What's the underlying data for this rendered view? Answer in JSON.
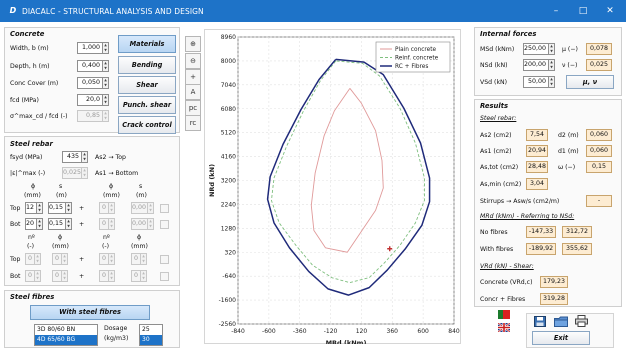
{
  "window": {
    "title": "DIACALC - STRUCTURAL ANALYSIS AND DESIGN",
    "logo": "D",
    "minimize": "–",
    "maximize": "□",
    "close": "✕"
  },
  "concrete": {
    "title": "Concrete",
    "width_label": "Width, b (m)",
    "width": "1,000",
    "depth_label": "Depth, h (m)",
    "depth": "0,400",
    "cover_label": "Conc Cover (m)",
    "cover": "0,050",
    "fcd_label": "fcd (MPa)",
    "fcd": "20,0",
    "sigma_label": "σ^max_cd / fcd (-)",
    "sigma": "0,85",
    "buttons": {
      "materials": "Materials",
      "bending": "Bending",
      "shear": "Shear",
      "punch": "Punch. shear",
      "crack": "Crack control"
    }
  },
  "tools": [
    "⊕",
    "⊖",
    "+",
    "A",
    "pc",
    "rc"
  ],
  "steel_rebar": {
    "title": "Steel rebar",
    "fsyd_label": "fsyd (MPa)",
    "fsyd": "435",
    "top_arrow": "As2 → Top",
    "eps_label": "|ε|^max (-)",
    "eps": "0,025",
    "bottom_arrow": "As1 → Bottom",
    "headers": {
      "phi": "ϕ",
      "s": "s",
      "mm": "(mm)",
      "m": "(m)",
      "n": "nº",
      "dash": "(-)"
    },
    "top_label": "Top",
    "bot_label": "Bot",
    "top_phi": "12",
    "top_s": "0,15",
    "top_phi2": "0",
    "top_s2": "0,00",
    "bot_phi": "20",
    "bot_s": "0,15",
    "bot_phi2": "0",
    "bot_s2": "0,00",
    "top2_n": "0",
    "top2_phi": "0",
    "top2_n2": "0",
    "top2_phi2": "0",
    "bot2_n": "0",
    "bot2_phi": "0",
    "bot2_n2": "0",
    "bot2_phi2": "0",
    "plus": "+"
  },
  "steel_fibres": {
    "title": "Steel fibres",
    "button": "With steel fibres",
    "options": [
      "3D 80/60 BN",
      "4D 65/60 BG"
    ],
    "dosage_label": "Dosage",
    "dosage_unit": "(kg/m3)",
    "dosage_values": [
      "25",
      "30"
    ]
  },
  "internal_forces": {
    "title": "Internal forces",
    "msd_label": "MSd (kNm)",
    "msd": "250,00",
    "mu_label": "μ (−)",
    "mu": "0,078",
    "nsd_label": "NSd (kN)",
    "nsd": "200,00",
    "nu_label": "ν (−)",
    "nu": "0,025",
    "vsd_label": "VSd (kN)",
    "vsd": "50,00",
    "munu_button": "μ, ν"
  },
  "results": {
    "title": "Results",
    "rebar_title": "Steel rebar:",
    "as2_label": "As2 (cm2)",
    "as2": "7,54",
    "d2_label": "d2 (m)",
    "d2": "0,060",
    "as1_label": "As1 (cm2)",
    "as1": "20,94",
    "d1_label": "d1 (m)",
    "d1": "0,060",
    "astot_label": "As,tot (cm2)",
    "astot": "28,48",
    "omega_label": "ω (−)",
    "omega": "0,15",
    "asmin_label": "As,min (cm2)",
    "asmin": "3,04",
    "stirrups_label": "Stirrups  →  Asw/s (cm2/m)",
    "stirrups": "-",
    "mrd_title": "MRd (kNm) - Referring to NSd:",
    "nofibres_label": "No fibres",
    "nofibres_a": "-147,33",
    "nofibres_b": "312,72",
    "withfibres_label": "With fibres",
    "withfibres_a": "-189,92",
    "withfibres_b": "355,62",
    "vrd_title": "VRd (kN) - Shear:",
    "concrete_label": "Concrete (VRd,c)",
    "concrete": "179,23",
    "concr_fibres_label": "Concr + Fibres",
    "concr_fibres": "319,28"
  },
  "bottom": {
    "exit": "Exit",
    "save_icon": "floppy-disk-icon",
    "folder_icon": "folder-icon",
    "print_icon": "printer-icon"
  },
  "colors": {
    "plain": "#e09a9a",
    "reinf": "#7fbf7f",
    "fibres": "#1f2a7a",
    "titlebar": "#1e73c8"
  },
  "chart_data": {
    "type": "line",
    "xlabel": "MRd (kNm)",
    "ylabel": "NRd (kN)",
    "xlim": [
      -840,
      840
    ],
    "ylim": [
      -2560,
      8960
    ],
    "xticks": [
      -840,
      -600,
      -360,
      -120,
      120,
      360,
      600,
      840
    ],
    "yticks": [
      -2560,
      -1600,
      -640,
      320,
      1280,
      2240,
      3200,
      4160,
      5120,
      6080,
      7040,
      8000,
      8960
    ],
    "grid": true,
    "legend_position": "top-right",
    "series": [
      {
        "name": "Plain concrete",
        "color": "#e09a9a",
        "dash": "",
        "x": [
          30,
          -90,
          -170,
          -240,
          -270,
          -250,
          -160,
          10,
          230,
          290,
          280,
          230,
          120,
          30
        ],
        "y": [
          6900,
          6000,
          5000,
          3500,
          2200,
          1200,
          500,
          320,
          2000,
          2900,
          4000,
          5200,
          6300,
          6900
        ]
      },
      {
        "name": "Reinf. concrete",
        "color": "#7fbf7f",
        "dash": "3,2",
        "x": [
          -80,
          -200,
          -330,
          -460,
          -560,
          -580,
          -520,
          -390,
          -260,
          -110,
          30,
          180,
          300,
          420,
          540,
          610,
          610,
          540,
          420,
          260,
          130,
          -80
        ],
        "y": [
          8000,
          7200,
          6000,
          4600,
          3300,
          2400,
          1500,
          600,
          -200,
          -700,
          -900,
          -700,
          -100,
          600,
          1500,
          2400,
          3300,
          4700,
          6100,
          7400,
          7900,
          8000
        ]
      },
      {
        "name": "RC + Fibres",
        "color": "#1f2a7a",
        "dash": "",
        "x": [
          -80,
          -210,
          -350,
          -490,
          -590,
          -610,
          -560,
          -440,
          -290,
          -140,
          20,
          180,
          320,
          460,
          590,
          650,
          650,
          580,
          450,
          290,
          140,
          -80
        ],
        "y": [
          8060,
          7250,
          6050,
          4650,
          3350,
          2450,
          1500,
          500,
          -450,
          -1150,
          -1400,
          -1100,
          -400,
          450,
          1400,
          2350,
          3300,
          4700,
          6100,
          7450,
          7950,
          8060
        ]
      },
      {
        "name": "",
        "color": "#c03030",
        "type": "point",
        "x": [
          340
        ],
        "y": [
          460
        ]
      }
    ]
  }
}
